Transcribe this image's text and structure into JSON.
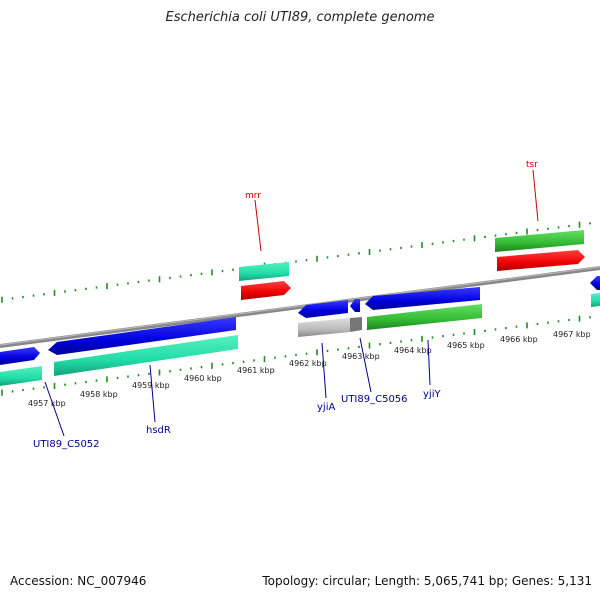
{
  "title": "Escherichia coli UTI89, complete genome",
  "footer": {
    "accession": "Accession: NC_007946",
    "summary": "Topology: circular; Length: 5,065,741 bp; Genes: 5,131"
  },
  "colors": {
    "backbone": "#888888",
    "tick": "#228b22",
    "blue_gene": "#0000dd",
    "teal_gene": "#22ddaa",
    "red_gene": "#ee0000",
    "green_gene": "#33bb33",
    "gray_gene": "#bbbbbb"
  },
  "kbp_labels": [
    "4957 kbp",
    "4958 kbp",
    "4959 kbp",
    "4960 kbp",
    "4961 kbp",
    "4962 kbp",
    "4963 kbp",
    "4964 kbp",
    "4965 kbp",
    "4966 kbp",
    "4967 kbp"
  ],
  "gene_labels": {
    "mrr": "mrr",
    "tsr": "tsr",
    "c5052": "UTI89_C5052",
    "hsdR": "hsdR",
    "yjiA": "yjiA",
    "c5056": "UTI89_C5056",
    "yjiY": "yjiY"
  }
}
